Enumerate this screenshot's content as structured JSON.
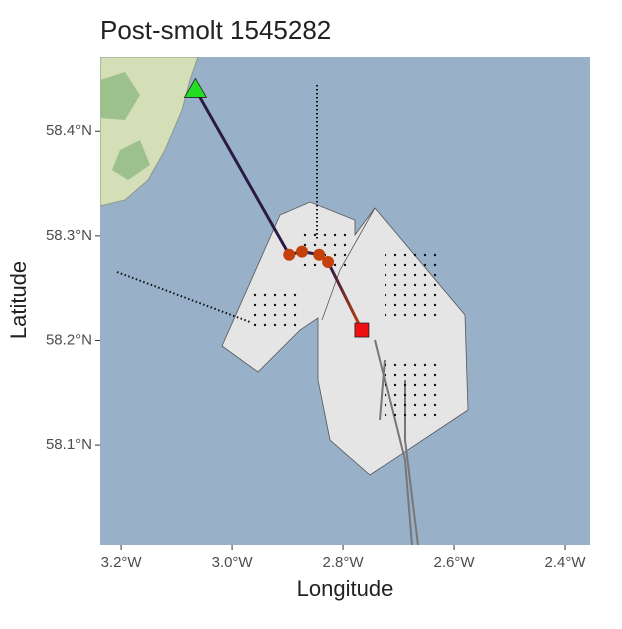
{
  "chart_data": {
    "type": "track",
    "title": "Post-smolt 1545282",
    "x_label": "Longitude",
    "y_label": "Latitude",
    "xlim": [
      -3.238,
      -2.355
    ],
    "ylim": [
      58.0045,
      58.471
    ],
    "xticks": [
      {
        "value": -3.2,
        "label": "3.2°W"
      },
      {
        "value": -3.0,
        "label": "3.0°W"
      },
      {
        "value": -2.8,
        "label": "2.8°W"
      },
      {
        "value": -2.6,
        "label": "2.6°W"
      },
      {
        "value": -2.4,
        "label": "2.4°W"
      }
    ],
    "yticks": [
      {
        "value": 58.1,
        "label": "58.1°N"
      },
      {
        "value": 58.2,
        "label": "58.2°N"
      },
      {
        "value": 58.3,
        "label": "58.3°N"
      },
      {
        "value": 58.4,
        "label": "58.4°N"
      }
    ],
    "series": [
      {
        "x": [
          -3.066,
          -2.897,
          -2.874,
          -2.843,
          -2.827,
          -2.766
        ],
        "y": [
          58.44,
          58.282,
          58.285,
          58.282,
          58.275,
          58.21
        ]
      }
    ],
    "line_colors": [
      "#2b1a45",
      "#c4410c"
    ],
    "point_color": "#c4410c",
    "start_color": "#22dd22",
    "end_color": "#ee1111"
  }
}
